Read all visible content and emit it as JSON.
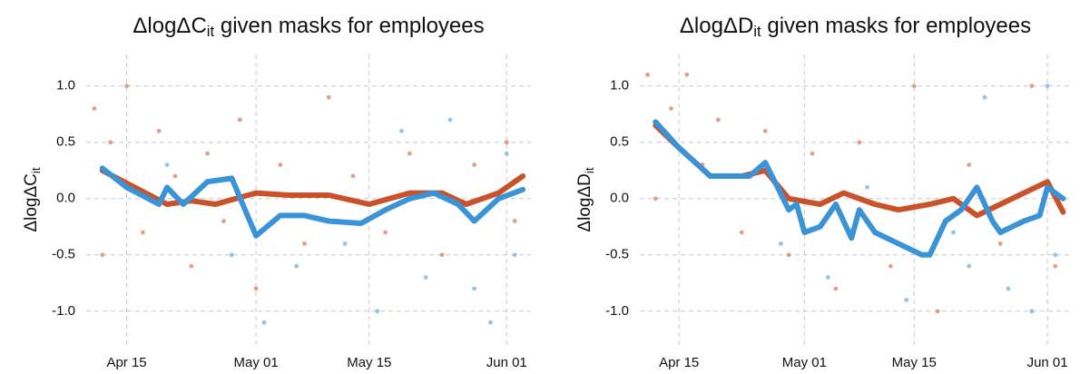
{
  "chart_data": [
    {
      "type": "line",
      "title": [
        "ΔlogΔC",
        "it",
        " given masks for employees"
      ],
      "y_label": [
        "ΔlogΔC",
        "it"
      ],
      "xlim": [
        "Apr 10",
        "Jun 04"
      ],
      "xticks": [
        "Apr 15",
        "May 01",
        "May 15",
        "Jun 01"
      ],
      "ylim": [
        -1.3,
        1.28
      ],
      "yticks": [
        {
          "value": -1.0,
          "label": "-1.0"
        },
        -0.5,
        {
          "value": 0.0,
          "label": "0.0"
        },
        0.5,
        {
          "value": 1.0,
          "label": "1.0"
        }
      ],
      "grid": true,
      "series": [
        {
          "type": "scatter",
          "color": "#d9805c",
          "x": [
            "Apr 11",
            "Apr 12",
            "Apr 13",
            "Apr 15",
            "Apr 17",
            "Apr 19",
            "Apr 21",
            "Apr 23",
            "Apr 25",
            "Apr 27",
            "Apr 29",
            "May 01",
            "May 04",
            "May 07",
            "May 10",
            "May 13",
            "May 17",
            "May 20",
            "May 24",
            "May 28",
            "Jun 01",
            "Jun 02"
          ],
          "values": [
            0.8,
            -0.5,
            0.5,
            1.0,
            -0.3,
            0.6,
            0.2,
            -0.6,
            0.4,
            -0.2,
            0.7,
            -0.8,
            0.3,
            -0.4,
            0.9,
            0.2,
            -0.3,
            0.4,
            -0.5,
            0.3,
            0.5,
            -0.2
          ]
        },
        {
          "type": "scatter",
          "color": "#6fb1e3",
          "x": [
            "Apr 20",
            "Apr 28",
            "May 02",
            "May 06",
            "May 12",
            "May 16",
            "May 19",
            "May 22",
            "May 25",
            "May 28",
            "May 30",
            "Jun 01",
            "Jun 02"
          ],
          "values": [
            0.3,
            -0.5,
            -1.1,
            -0.6,
            -0.4,
            -1.0,
            0.6,
            -0.7,
            0.7,
            -0.8,
            -1.1,
            0.4,
            -0.5
          ]
        },
        {
          "type": "line",
          "color": "#c9522b",
          "x": [
            "Apr 12",
            "Apr 16",
            "Apr 20",
            "Apr 23",
            "Apr 26",
            "May 01",
            "May 05",
            "May 10",
            "May 15",
            "May 20",
            "May 24",
            "May 27",
            "May 31",
            "Jun 03"
          ],
          "values": [
            0.25,
            0.1,
            -0.05,
            -0.02,
            -0.05,
            0.05,
            0.03,
            0.03,
            -0.05,
            0.05,
            0.05,
            -0.05,
            0.05,
            0.2
          ]
        },
        {
          "type": "line",
          "color": "#3a93d6",
          "x": [
            "Apr 12",
            "Apr 15",
            "Apr 19",
            "Apr 20",
            "Apr 22",
            "Apr 25",
            "Apr 28",
            "May 01",
            "May 04",
            "May 07",
            "May 10",
            "May 14",
            "May 17",
            "May 20",
            "May 23",
            "May 26",
            "May 28",
            "May 31",
            "Jun 03"
          ],
          "values": [
            0.27,
            0.1,
            -0.05,
            0.1,
            -0.05,
            0.15,
            0.18,
            -0.33,
            -0.15,
            -0.15,
            -0.2,
            -0.22,
            -0.1,
            0.0,
            0.05,
            -0.05,
            -0.2,
            0.0,
            0.08
          ]
        }
      ]
    },
    {
      "type": "line",
      "title": [
        "ΔlogΔD",
        "it",
        " given masks for employees"
      ],
      "y_label": [
        "ΔlogΔD",
        "it"
      ],
      "xlim": [
        "Apr 10",
        "Jun 04"
      ],
      "xticks": [
        "Apr 15",
        "May 01",
        "May 15",
        "Jun 01"
      ],
      "ylim": [
        -1.3,
        1.28
      ],
      "yticks": [
        {
          "value": -1.0,
          "label": "-1.0"
        },
        -0.5,
        {
          "value": 0.0,
          "label": "0.0"
        },
        0.5,
        {
          "value": 1.0,
          "label": "1.0"
        }
      ],
      "grid": true,
      "series": [
        {
          "type": "scatter",
          "color": "#d9805c",
          "x": [
            "Apr 11",
            "Apr 12",
            "Apr 14",
            "Apr 16",
            "Apr 18",
            "Apr 20",
            "Apr 23",
            "Apr 26",
            "Apr 29",
            "May 02",
            "May 05",
            "May 08",
            "May 12",
            "May 15",
            "May 18",
            "May 22",
            "May 26",
            "May 30",
            "Jun 02"
          ],
          "values": [
            1.1,
            0.0,
            0.8,
            1.1,
            0.3,
            0.7,
            -0.3,
            0.6,
            -0.5,
            0.4,
            -0.8,
            0.5,
            -0.6,
            1.0,
            -1.0,
            0.3,
            -0.4,
            1.0,
            -0.6
          ]
        },
        {
          "type": "scatter",
          "color": "#6fb1e3",
          "x": [
            "Apr 28",
            "May 04",
            "May 09",
            "May 14",
            "May 20",
            "May 22",
            "May 24",
            "May 27",
            "May 30",
            "Jun 01",
            "Jun 02"
          ],
          "values": [
            -0.4,
            -0.7,
            0.1,
            -0.9,
            -0.3,
            -0.6,
            0.9,
            -0.8,
            -1.0,
            1.0,
            -0.5
          ]
        },
        {
          "type": "line",
          "color": "#c9522b",
          "x": [
            "Apr 12",
            "Apr 15",
            "Apr 19",
            "Apr 23",
            "Apr 26",
            "Apr 29",
            "May 03",
            "May 06",
            "May 10",
            "May 13",
            "May 17",
            "May 20",
            "May 23",
            "May 26",
            "May 29",
            "Jun 01",
            "Jun 03"
          ],
          "values": [
            0.65,
            0.45,
            0.2,
            0.2,
            0.25,
            0.0,
            -0.05,
            0.05,
            -0.05,
            -0.1,
            -0.05,
            0.0,
            -0.15,
            -0.05,
            0.05,
            0.15,
            -0.12
          ]
        },
        {
          "type": "line",
          "color": "#3a93d6",
          "x": [
            "Apr 12",
            "Apr 15",
            "Apr 19",
            "Apr 22",
            "Apr 24",
            "Apr 26",
            "Apr 29",
            "Apr 30",
            "May 01",
            "May 03",
            "May 05",
            "May 07",
            "May 08",
            "May 10",
            "May 13",
            "May 16",
            "May 17",
            "May 19",
            "May 21",
            "May 23",
            "May 25",
            "May 26",
            "May 29",
            "May 31",
            "Jun 01",
            "Jun 03"
          ],
          "values": [
            0.68,
            0.45,
            0.2,
            0.2,
            0.2,
            0.32,
            -0.1,
            -0.05,
            -0.3,
            -0.25,
            -0.05,
            -0.35,
            -0.1,
            -0.3,
            -0.4,
            -0.5,
            -0.5,
            -0.2,
            -0.1,
            0.1,
            -0.2,
            -0.3,
            -0.2,
            -0.15,
            0.1,
            0.0
          ]
        }
      ]
    }
  ]
}
